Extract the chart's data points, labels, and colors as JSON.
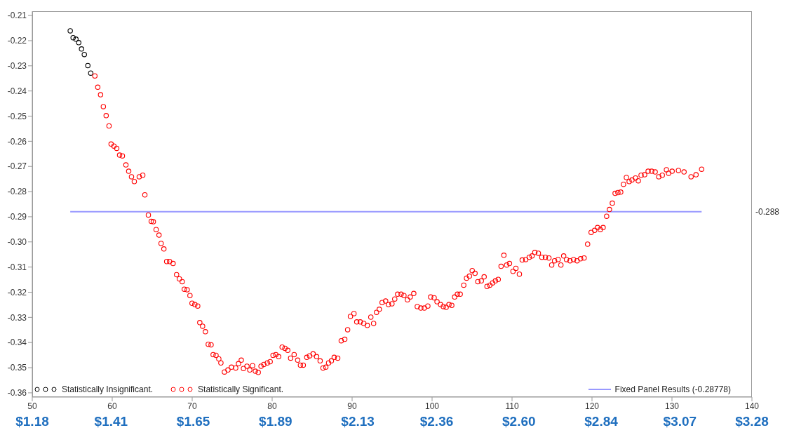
{
  "chart_data": {
    "type": "scatter",
    "xlim": [
      50,
      140
    ],
    "xticks": [
      50,
      60,
      70,
      80,
      90,
      100,
      110,
      120,
      130,
      140
    ],
    "x2lim": [
      1.18,
      3.28
    ],
    "x2ticks": [
      {
        "value": 1.18,
        "label": "$1.18"
      },
      {
        "value": 1.41,
        "label": "$1.41"
      },
      {
        "value": 1.65,
        "label": "$1.65"
      },
      {
        "value": 1.89,
        "label": "$1.89"
      },
      {
        "value": 2.13,
        "label": "$2.13"
      },
      {
        "value": 2.36,
        "label": "$2.36"
      },
      {
        "value": 2.6,
        "label": "$2.60"
      },
      {
        "value": 2.84,
        "label": "$2.84"
      },
      {
        "value": 3.07,
        "label": "$3.07"
      },
      {
        "value": 3.28,
        "label": "$3.28"
      }
    ],
    "ylim": [
      -0.3617,
      -0.2083
    ],
    "yticks": [
      -0.36,
      -0.35,
      -0.34,
      -0.33,
      -0.32,
      -0.31,
      {
        "value": -0.3,
        "label": "-0.30"
      },
      -0.29,
      -0.28,
      -0.27,
      -0.26,
      -0.25,
      -0.24,
      -0.23,
      -0.22,
      -0.21
    ],
    "grid": false,
    "legend": "bottom",
    "marker": "circle",
    "annotations": [
      "-0.288"
    ],
    "series": [
      {
        "name": "Statistically Insignificant.",
        "color": "#000000",
        "x": [
          54.75,
          55.11,
          55.46,
          55.81,
          56.16,
          56.51,
          56.95,
          57.31
        ],
        "values": [
          -0.2161,
          -0.2188,
          -0.2194,
          -0.2208,
          -0.2233,
          -0.2255,
          -0.2299,
          -0.2329
        ]
      },
      {
        "name": "Statistically Significant.",
        "color": "#ff0000",
        "x": [
          57.83,
          58.19,
          58.54,
          58.89,
          59.24,
          59.6,
          59.86,
          60.21,
          60.56,
          60.92,
          61.27,
          61.71,
          62.06,
          62.41,
          62.76,
          63.38,
          63.82,
          64.08,
          64.52,
          64.88,
          65.14,
          65.49,
          65.85,
          66.11,
          66.46,
          66.81,
          67.17,
          67.61,
          68.05,
          68.4,
          68.75,
          69.01,
          69.37,
          69.72,
          69.98,
          70.33,
          70.69,
          70.95,
          71.3,
          71.65,
          72.01,
          72.36,
          72.62,
          72.98,
          73.33,
          73.59,
          74.03,
          74.47,
          74.91,
          75.44,
          75.79,
          76.14,
          76.41,
          76.85,
          77.2,
          77.55,
          77.9,
          78.26,
          78.61,
          78.96,
          79.4,
          79.75,
          80.11,
          80.46,
          80.81,
          81.25,
          81.6,
          81.95,
          82.31,
          82.75,
          83.19,
          83.54,
          83.89,
          84.33,
          84.68,
          85.12,
          85.56,
          86.0,
          86.36,
          86.71,
          87.06,
          87.41,
          87.76,
          88.2,
          88.64,
          89.08,
          89.44,
          89.79,
          90.23,
          90.58,
          91.02,
          91.46,
          91.9,
          92.34,
          92.69,
          93.05,
          93.4,
          93.75,
          94.19,
          94.54,
          94.98,
          95.33,
          95.69,
          96.13,
          96.48,
          96.92,
          97.27,
          97.71,
          98.15,
          98.59,
          99.03,
          99.47,
          99.82,
          100.26,
          100.62,
          101.06,
          101.41,
          101.76,
          102.11,
          102.46,
          102.82,
          103.17,
          103.52,
          103.96,
          104.31,
          104.67,
          105.02,
          105.37,
          105.72,
          106.16,
          106.51,
          106.87,
          107.22,
          107.57,
          107.92,
          108.27,
          108.63,
          108.98,
          109.33,
          109.68,
          110.12,
          110.48,
          110.92,
          111.27,
          111.71,
          112.15,
          112.5,
          112.85,
          113.29,
          113.73,
          114.17,
          114.61,
          114.96,
          115.32,
          115.76,
          116.11,
          116.46,
          116.81,
          117.25,
          117.69,
          118.13,
          118.57,
          119.01,
          119.45,
          119.89,
          120.33,
          120.69,
          121.04,
          121.39,
          121.83,
          122.18,
          122.54,
          122.89,
          123.24,
          123.59,
          123.94,
          124.3,
          124.65,
          125.0,
          125.44,
          125.79,
          126.14,
          126.58,
          127.02,
          127.46,
          127.9,
          128.35,
          128.79,
          129.31,
          129.58,
          130.02,
          130.81,
          131.51,
          132.39,
          133.01,
          133.71
        ],
        "values": [
          -0.234,
          -0.2385,
          -0.2415,
          -0.2462,
          -0.2498,
          -0.2539,
          -0.2611,
          -0.2619,
          -0.2628,
          -0.2655,
          -0.2658,
          -0.2694,
          -0.2719,
          -0.2741,
          -0.276,
          -0.2741,
          -0.2735,
          -0.2813,
          -0.2893,
          -0.2918,
          -0.292,
          -0.2951,
          -0.2973,
          -0.3006,
          -0.3028,
          -0.3078,
          -0.3078,
          -0.3086,
          -0.313,
          -0.3147,
          -0.3158,
          -0.3188,
          -0.319,
          -0.3213,
          -0.3244,
          -0.3249,
          -0.3255,
          -0.3321,
          -0.3335,
          -0.3357,
          -0.3407,
          -0.3409,
          -0.3448,
          -0.3451,
          -0.3465,
          -0.3481,
          -0.3517,
          -0.3509,
          -0.3498,
          -0.3501,
          -0.3484,
          -0.347,
          -0.3503,
          -0.3494,
          -0.3509,
          -0.3492,
          -0.3514,
          -0.3519,
          -0.3494,
          -0.3487,
          -0.3481,
          -0.3476,
          -0.3451,
          -0.3448,
          -0.3456,
          -0.3418,
          -0.3423,
          -0.3431,
          -0.3462,
          -0.3448,
          -0.347,
          -0.349,
          -0.349,
          -0.3459,
          -0.3453,
          -0.3445,
          -0.3456,
          -0.3473,
          -0.3501,
          -0.3498,
          -0.3481,
          -0.3473,
          -0.3459,
          -0.3462,
          -0.3393,
          -0.3387,
          -0.3349,
          -0.3296,
          -0.3285,
          -0.3318,
          -0.3318,
          -0.3324,
          -0.3332,
          -0.3299,
          -0.3324,
          -0.328,
          -0.3268,
          -0.3241,
          -0.3235,
          -0.3249,
          -0.3246,
          -0.3227,
          -0.3208,
          -0.3208,
          -0.3213,
          -0.323,
          -0.3219,
          -0.3205,
          -0.3257,
          -0.3263,
          -0.3263,
          -0.3255,
          -0.3219,
          -0.3222,
          -0.3238,
          -0.3249,
          -0.3257,
          -0.326,
          -0.3249,
          -0.3252,
          -0.3219,
          -0.3208,
          -0.3208,
          -0.3172,
          -0.3144,
          -0.3136,
          -0.3114,
          -0.3125,
          -0.3158,
          -0.3155,
          -0.3139,
          -0.3177,
          -0.3172,
          -0.3163,
          -0.3155,
          -0.3149,
          -0.3097,
          -0.3053,
          -0.3092,
          -0.3086,
          -0.3117,
          -0.3105,
          -0.3128,
          -0.3072,
          -0.307,
          -0.3061,
          -0.3056,
          -0.3042,
          -0.3045,
          -0.3061,
          -0.3061,
          -0.3064,
          -0.3092,
          -0.3075,
          -0.307,
          -0.3092,
          -0.3056,
          -0.307,
          -0.3075,
          -0.307,
          -0.3075,
          -0.3067,
          -0.3064,
          -0.3009,
          -0.2962,
          -0.2954,
          -0.2943,
          -0.2951,
          -0.2943,
          -0.2898,
          -0.2871,
          -0.2846,
          -0.2807,
          -0.2804,
          -0.2802,
          -0.2771,
          -0.2744,
          -0.276,
          -0.2754,
          -0.2746,
          -0.2757,
          -0.2735,
          -0.2733,
          -0.2719,
          -0.2719,
          -0.2722,
          -0.2741,
          -0.2735,
          -0.2713,
          -0.2727,
          -0.2719,
          -0.2716,
          -0.2722,
          -0.2741,
          -0.2733,
          -0.2711
        ]
      },
      {
        "name": "Fixed Panel Results (-0.28778)",
        "color": "#9999ff",
        "type": "line",
        "marker": "none",
        "line_style": "solid",
        "x": [
          54.75,
          133.71
        ],
        "values": [
          -0.288,
          -0.288
        ]
      }
    ]
  }
}
